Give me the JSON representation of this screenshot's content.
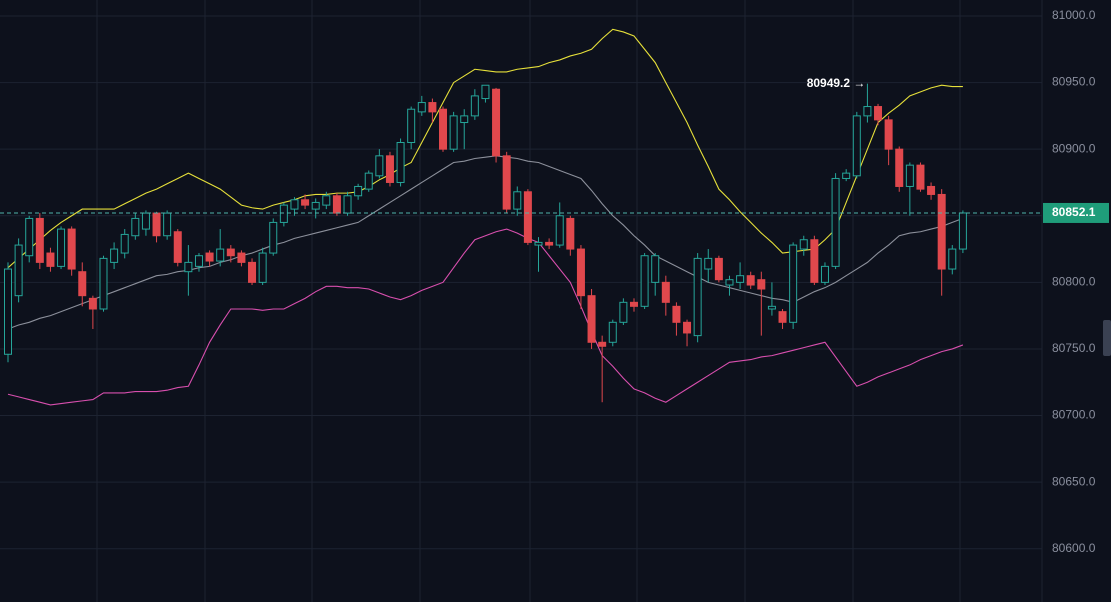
{
  "chart_data": {
    "type": "candlestick",
    "ylim": [
      80560,
      81012
    ],
    "yticks": [
      {
        "value": 80600,
        "label": "80600.0"
      },
      {
        "value": 80650,
        "label": "80650.0"
      },
      {
        "value": 80700,
        "label": "80700.0"
      },
      {
        "value": 80750,
        "label": "80750.0"
      },
      {
        "value": 80800,
        "label": "80800.0"
      },
      {
        "value": 80850,
        "label": "80850.0"
      },
      {
        "value": 80900,
        "label": "80900.0"
      },
      {
        "value": 80950,
        "label": "80950.0"
      },
      {
        "value": 81000,
        "label": "81000.0"
      }
    ],
    "grid": true,
    "up_color": "#26a69a",
    "down_color": "#e0484d",
    "open": [
      80746,
      80790,
      80820,
      80848,
      80822,
      80812,
      80840,
      80808,
      80788,
      80780,
      80815,
      80822,
      80835,
      80840,
      80852,
      80835,
      80838,
      80808,
      80812,
      80822,
      80816,
      80825,
      80822,
      80815,
      80800,
      80822,
      80845,
      80855,
      80862,
      80855,
      80858,
      80865,
      80852,
      80865,
      80870,
      80880,
      80895,
      80875,
      80905,
      80928,
      80935,
      80930,
      80900,
      80920,
      80925,
      80938,
      80945,
      80895,
      80855,
      80868,
      80828,
      80830,
      80828,
      80848,
      80825,
      80790,
      80755,
      80755,
      80770,
      80785,
      80782,
      80800,
      80800,
      80782,
      80770,
      80760,
      80810,
      80818,
      80798,
      80800,
      80805,
      80802,
      80780,
      80778,
      80770,
      80825,
      80832,
      80800,
      80812,
      80878,
      80880,
      80925,
      80932,
      80922,
      80900,
      80872,
      80888,
      80872,
      80866,
      80810,
      80825
    ],
    "high": [
      80815,
      80833,
      80850,
      80852,
      80826,
      80842,
      80842,
      80815,
      80790,
      80820,
      80830,
      80840,
      80852,
      80854,
      80853,
      80854,
      80840,
      80828,
      80822,
      80824,
      80840,
      80828,
      80824,
      80818,
      80826,
      80848,
      80860,
      80864,
      80866,
      80863,
      80868,
      80867,
      80868,
      80874,
      80884,
      80900,
      80898,
      80908,
      80932,
      80940,
      80938,
      80932,
      80928,
      80930,
      80945,
      80945,
      80946,
      80898,
      80872,
      80870,
      80834,
      80833,
      80860,
      80850,
      80828,
      80795,
      80760,
      80772,
      80788,
      80788,
      80822,
      80822,
      80805,
      80785,
      80772,
      80822,
      80825,
      80820,
      80805,
      80815,
      80808,
      80808,
      80800,
      80780,
      80830,
      80835,
      80835,
      80815,
      80882,
      80885,
      80928,
      80949.2,
      80934,
      80925,
      80902,
      80890,
      80890,
      80875,
      80870,
      80828,
      80854
    ],
    "low": [
      80740,
      80785,
      80815,
      80810,
      80808,
      80810,
      80805,
      80782,
      80765,
      80778,
      80810,
      80818,
      80832,
      80835,
      80830,
      80832,
      80812,
      80790,
      80808,
      80812,
      80812,
      80815,
      80812,
      80798,
      80798,
      80820,
      80842,
      80850,
      80855,
      80848,
      80855,
      80850,
      80850,
      80862,
      80868,
      80878,
      80872,
      80872,
      80900,
      80925,
      80920,
      80898,
      80898,
      80900,
      80922,
      80935,
      80890,
      80852,
      80850,
      80828,
      80808,
      80825,
      80826,
      80820,
      80780,
      80750,
      80710,
      80752,
      80768,
      80778,
      80780,
      80790,
      80775,
      80760,
      80752,
      80755,
      80800,
      80800,
      80790,
      80795,
      80795,
      80760,
      80775,
      80765,
      80765,
      80820,
      80798,
      80798,
      80810,
      80876,
      80878,
      80920,
      80918,
      80888,
      80868,
      80850,
      80868,
      80862,
      80790,
      80806,
      80822
    ],
    "close": [
      80810,
      80828,
      80848,
      80815,
      80812,
      80840,
      80810,
      80790,
      80780,
      80818,
      80825,
      80836,
      80848,
      80852,
      80835,
      80852,
      80815,
      80815,
      80820,
      80816,
      80825,
      80820,
      80815,
      80800,
      80822,
      80845,
      80858,
      80862,
      80858,
      80860,
      80865,
      80852,
      80865,
      80872,
      80882,
      80895,
      80875,
      80905,
      80930,
      80935,
      80928,
      80900,
      80925,
      80925,
      80940,
      80948,
      80895,
      80855,
      80868,
      80830,
      80830,
      80828,
      80850,
      80825,
      80790,
      80755,
      80752,
      80770,
      80785,
      80782,
      80820,
      80820,
      80785,
      80770,
      80762,
      80818,
      80818,
      80802,
      80802,
      80805,
      80798,
      80795,
      80782,
      80770,
      80828,
      80832,
      80800,
      80812,
      80878,
      80882,
      80925,
      80932,
      80922,
      80900,
      80872,
      80888,
      80870,
      80866,
      80810,
      80825,
      80852.1
    ],
    "bands": {
      "upper": {
        "color": "#e6e03a",
        "values": [
          80811,
          80818,
          80825,
          80832,
          80839,
          80845,
          80850,
          80855,
          80855,
          80855,
          80855,
          80859,
          80863,
          80867,
          80870,
          80874,
          80878,
          80882,
          80878,
          80874,
          80870,
          80864,
          80858,
          80856,
          80855,
          80858,
          80860,
          80862,
          80865,
          80866,
          80866,
          80867,
          80867,
          80868,
          80872,
          80877,
          80881,
          80886,
          80890,
          80905,
          80920,
          80935,
          80950,
          80955,
          80960,
          80959,
          80958,
          80958,
          80960,
          80961,
          80962,
          80965,
          80967,
          80970,
          80972,
          80975,
          80983,
          80990,
          80988,
          80985,
          80975,
          80965,
          80950,
          80935,
          80920,
          80903,
          80887,
          80870,
          80862,
          80853,
          80845,
          80837,
          80830,
          80822,
          80823,
          80824,
          80825,
          80832,
          80840,
          80860,
          80880,
          80900,
          80920,
          80927,
          80933,
          80940,
          80943,
          80946,
          80948,
          80947,
          80947
        ]
      },
      "middle": {
        "color": "#8c909b",
        "values": [
          80765,
          80768,
          80770,
          80773,
          80775,
          80778,
          80781,
          80784,
          80787,
          80790,
          80793,
          80796,
          80799,
          80802,
          80805,
          80806,
          80808,
          80809,
          80811,
          80812,
          80815,
          80817,
          80820,
          80822,
          80825,
          80828,
          80830,
          80833,
          80835,
          80837,
          80839,
          80841,
          80843,
          80845,
          80850,
          80855,
          80860,
          80865,
          80870,
          80875,
          80880,
          80885,
          80890,
          80891,
          80893,
          80894,
          80895,
          80894,
          80893,
          80891,
          80890,
          80887,
          80884,
          80881,
          80878,
          80869,
          80859,
          80850,
          80843,
          80835,
          80828,
          80820,
          80816,
          80812,
          80808,
          80804,
          80800,
          80798,
          80796,
          80794,
          80792,
          80790,
          80788,
          80787,
          80785,
          80789,
          80793,
          80796,
          80800,
          80805,
          80810,
          80815,
          80822,
          80828,
          80835,
          80837,
          80838,
          80840,
          80842,
          80845,
          80848
        ]
      },
      "lower": {
        "color": "#d84fae",
        "values": [
          80716,
          80714,
          80712,
          80710,
          80708,
          80709,
          80710,
          80711,
          80712,
          80717,
          80717,
          80717,
          80718,
          80718,
          80718,
          80719,
          80721,
          80722,
          80738,
          80755,
          80768,
          80780,
          80780,
          80780,
          80779,
          80780,
          80780,
          80784,
          80788,
          80793,
          80797,
          80797,
          80796,
          80796,
          80795,
          80792,
          80789,
          80787,
          80790,
          80794,
          80797,
          80800,
          80811,
          80822,
          80832,
          80835,
          80838,
          80840,
          80837,
          80833,
          80830,
          80820,
          80810,
          80800,
          80782,
          80763,
          80745,
          80737,
          80728,
          80720,
          80717,
          80713,
          80710,
          80715,
          80720,
          80725,
          80730,
          80735,
          80740,
          80741,
          80742,
          80744,
          80745,
          80747,
          80749,
          80751,
          80753,
          80755,
          80744,
          80733,
          80722,
          80725,
          80729,
          80732,
          80735,
          80738,
          80742,
          80745,
          80748,
          80750,
          80753
        ]
      }
    },
    "high_label": "80949.2 →",
    "last_price": 80852.1
  }
}
